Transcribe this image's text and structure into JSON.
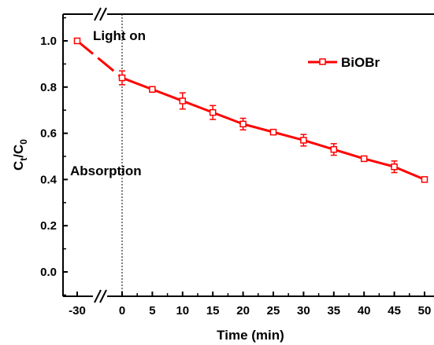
{
  "chart_data": {
    "type": "line",
    "title": "",
    "xlabel": "Time (min)",
    "ylabel": {
      "main": "C",
      "sub1": "t",
      "mid": "/C",
      "sub2": "0"
    },
    "x_ticks": [
      "-30",
      "0",
      "5",
      "10",
      "15",
      "20",
      "25",
      "30",
      "35",
      "40",
      "45",
      "50"
    ],
    "y_ticks": [
      "0.0",
      "0.2",
      "0.4",
      "0.6",
      "0.8",
      "1.0"
    ],
    "xlim": [
      -30,
      50
    ],
    "x_break": [
      -30,
      0
    ],
    "ylim": [
      -0.1,
      1.1
    ],
    "grid": false,
    "legend_position": "top-right",
    "annotations": {
      "light_on": "Light on",
      "absorption": "Absorption"
    },
    "series": [
      {
        "name": "BiOBr",
        "color": "#ff0000",
        "marker": "square",
        "x": [
          -30,
          0,
          5,
          10,
          15,
          20,
          25,
          30,
          35,
          40,
          45,
          50
        ],
        "y": [
          1.0,
          0.84,
          0.79,
          0.74,
          0.69,
          0.64,
          0.605,
          0.57,
          0.53,
          0.49,
          0.455,
          0.4
        ],
        "error": [
          0.0,
          0.03,
          0.012,
          0.035,
          0.03,
          0.025,
          0.01,
          0.025,
          0.025,
          0.01,
          0.025,
          0.01
        ]
      }
    ]
  }
}
